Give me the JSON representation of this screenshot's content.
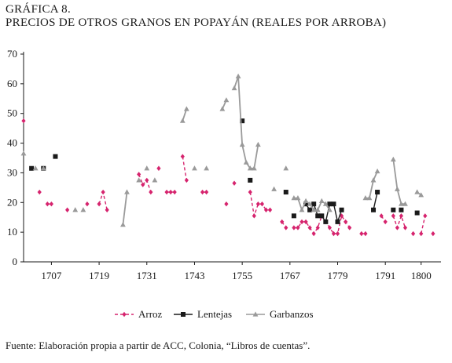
{
  "figure": {
    "label": "GRÁFICA 8.",
    "title": "PRECIOS DE OTROS GRANOS EN POPAYÁN (REALES POR ARROBA)",
    "source": "Fuente: Elaboración propia a partir de ACC, Colonia, “Libros de cuentas”."
  },
  "chart_data": {
    "type": "line",
    "title": "PRECIOS DE OTROS GRANOS EN POPAYÁN (REALES POR ARROBA)",
    "xlabel": "",
    "ylabel": "",
    "xlim": [
      1700,
      1805
    ],
    "ylim": [
      0,
      70
    ],
    "yticks": [
      0,
      10,
      20,
      30,
      40,
      50,
      60,
      70
    ],
    "xticks": [
      1707,
      1719,
      1731,
      1743,
      1755,
      1767,
      1779,
      1791,
      1800
    ],
    "grid": false,
    "legend": "bottom",
    "series": [
      {
        "name": "Arroz",
        "color": "#d6246e",
        "marker": "diamond",
        "dash": "dashed",
        "segments": [
          [
            [
              1700,
              47.5
            ]
          ],
          [
            [
              1704,
              23.5
            ]
          ],
          [
            [
              1706,
              19.5
            ],
            [
              1707,
              19.5
            ]
          ],
          [
            [
              1711,
              17.5
            ]
          ],
          [
            [
              1716,
              19.5
            ]
          ],
          [
            [
              1719,
              19.5
            ],
            [
              1720,
              23.5
            ],
            [
              1721,
              17.5
            ]
          ],
          [
            [
              1729,
              29.5
            ],
            [
              1730,
              26
            ],
            [
              1731,
              27.5
            ],
            [
              1732,
              23.5
            ]
          ],
          [
            [
              1734,
              31.5
            ]
          ],
          [
            [
              1736,
              23.5
            ],
            [
              1737,
              23.5
            ],
            [
              1738,
              23.5
            ]
          ],
          [
            [
              1740,
              35.5
            ],
            [
              1741,
              27.5
            ]
          ],
          [
            [
              1745,
              23.5
            ],
            [
              1746,
              23.5
            ]
          ],
          [
            [
              1751,
              19.5
            ]
          ],
          [
            [
              1753,
              26.5
            ]
          ],
          [
            [
              1757,
              23.5
            ],
            [
              1758,
              15.5
            ],
            [
              1759,
              19.5
            ],
            [
              1760,
              19.5
            ],
            [
              1761,
              17.5
            ],
            [
              1762,
              17.5
            ]
          ],
          [
            [
              1765,
              13.5
            ],
            [
              1766,
              11.5
            ]
          ],
          [
            [
              1768,
              11.5
            ],
            [
              1769,
              11.5
            ],
            [
              1770,
              13.5
            ],
            [
              1771,
              13.5
            ],
            [
              1772,
              11.5
            ],
            [
              1773,
              9.5
            ],
            [
              1774,
              11.5
            ],
            [
              1775,
              15.5
            ],
            [
              1776,
              13.5
            ],
            [
              1777,
              11.5
            ],
            [
              1778,
              9.5
            ],
            [
              1779,
              9.5
            ],
            [
              1780,
              15.5
            ],
            [
              1781,
              13.5
            ],
            [
              1782,
              11.5
            ]
          ],
          [
            [
              1785,
              9.5
            ],
            [
              1786,
              9.5
            ]
          ],
          [
            [
              1790,
              15.5
            ],
            [
              1791,
              13.5
            ]
          ],
          [
            [
              1793,
              15.5
            ],
            [
              1794,
              11.5
            ],
            [
              1795,
              15.5
            ],
            [
              1796,
              11.5
            ]
          ],
          [
            [
              1798,
              9.5
            ]
          ],
          [
            [
              1800,
              9.5
            ],
            [
              1801,
              15.5
            ]
          ],
          [
            [
              1803,
              9.5
            ]
          ]
        ]
      },
      {
        "name": "Lentejas",
        "color": "#1a1a1a",
        "marker": "square",
        "dash": "solid",
        "segments": [
          [
            [
              1702,
              31.5
            ]
          ],
          [
            [
              1705,
              31.5
            ]
          ],
          [
            [
              1708,
              35.5
            ]
          ],
          [
            [
              1755,
              47.5
            ]
          ],
          [
            [
              1757,
              27.5
            ]
          ],
          [
            [
              1766,
              23.5
            ]
          ],
          [
            [
              1768,
              15.5
            ]
          ],
          [
            [
              1771,
              19.5
            ],
            [
              1772,
              17.5
            ],
            [
              1773,
              19.5
            ],
            [
              1774,
              15.5
            ],
            [
              1775,
              15.5
            ],
            [
              1776,
              13.5
            ],
            [
              1777,
              19.5
            ],
            [
              1778,
              19.5
            ],
            [
              1779,
              13.5
            ],
            [
              1780,
              17.5
            ]
          ],
          [
            [
              1788,
              17.5
            ],
            [
              1789,
              23.5
            ]
          ],
          [
            [
              1793,
              17.5
            ]
          ],
          [
            [
              1795,
              17.5
            ]
          ],
          [
            [
              1799,
              16.5
            ]
          ]
        ]
      },
      {
        "name": "Garbanzos",
        "color": "#9a9a9a",
        "marker": "triangle",
        "dash": "solid",
        "segments": [
          [
            [
              1700,
              36.5
            ]
          ],
          [
            [
              1703,
              31.5
            ]
          ],
          [
            [
              1705,
              31.5
            ]
          ],
          [
            [
              1713,
              17.5
            ]
          ],
          [
            [
              1715,
              17.5
            ]
          ],
          [
            [
              1725,
              12.5
            ],
            [
              1726,
              23.5
            ]
          ],
          [
            [
              1729,
              27.5
            ]
          ],
          [
            [
              1731,
              31.5
            ]
          ],
          [
            [
              1733,
              27.5
            ]
          ],
          [
            [
              1740,
              47.5
            ],
            [
              1741,
              51.5
            ]
          ],
          [
            [
              1743,
              31.5
            ]
          ],
          [
            [
              1746,
              31.5
            ]
          ],
          [
            [
              1750,
              51.5
            ],
            [
              1751,
              54.5
            ]
          ],
          [
            [
              1753,
              58.5
            ],
            [
              1754,
              62.5
            ],
            [
              1755,
              39.5
            ],
            [
              1756,
              33.5
            ],
            [
              1757,
              31.5
            ],
            [
              1758,
              31.5
            ],
            [
              1759,
              39.5
            ]
          ],
          [
            [
              1763,
              24.5
            ]
          ],
          [
            [
              1766,
              31.5
            ]
          ],
          [
            [
              1768,
              21.5
            ],
            [
              1769,
              21.5
            ],
            [
              1770,
              17.5
            ],
            [
              1771,
              20.5
            ],
            [
              1772,
              19.5
            ],
            [
              1773,
              17.5
            ],
            [
              1774,
              17.5
            ],
            [
              1775,
              20.5
            ],
            [
              1776,
              19.5
            ],
            [
              1777,
              17.5
            ]
          ],
          [
            [
              1786,
              21.5
            ],
            [
              1787,
              21.5
            ],
            [
              1788,
              27.5
            ],
            [
              1789,
              30.5
            ]
          ],
          [
            [
              1793,
              34.5
            ],
            [
              1794,
              24.5
            ],
            [
              1795,
              19.5
            ],
            [
              1796,
              19.5
            ]
          ],
          [
            [
              1799,
              23.5
            ],
            [
              1800,
              22.5
            ]
          ]
        ]
      }
    ]
  }
}
